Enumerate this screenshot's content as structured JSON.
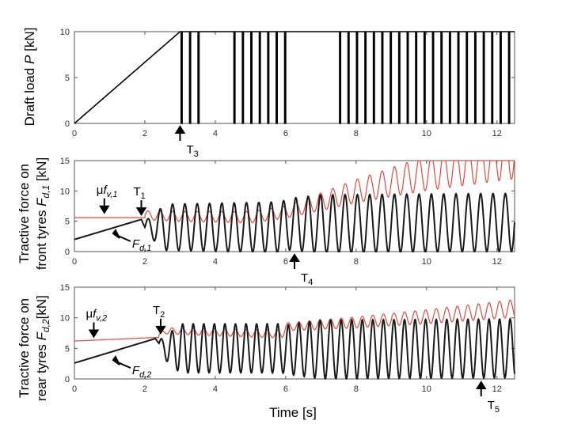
{
  "chart_data": [
    {
      "type": "line",
      "ylabel_text": "Draft load ",
      "ylabel_var": "P",
      "ylabel_unit": " [kN]",
      "xlim": [
        0,
        12.5
      ],
      "ylim": [
        0,
        10
      ],
      "xticks": [
        0,
        2,
        4,
        6,
        8,
        10,
        12
      ],
      "yticks": [
        0,
        5,
        10
      ],
      "ramp": {
        "x": [
          0,
          3
        ],
        "y": [
          0,
          10
        ]
      },
      "high_level": 10,
      "low_level": 0,
      "pulse_start": 3,
      "pulse_end": 12.5,
      "gaps": [
        [
          3.5,
          4.5
        ],
        [
          6.1,
          7.5
        ]
      ],
      "series": [
        {
          "color": "#000000"
        }
      ],
      "annotations": [
        {
          "label": "T",
          "sub": "3",
          "x": 3.0,
          "y": 0
        }
      ]
    },
    {
      "type": "line",
      "ylabel_line1": "Tractive force on",
      "ylabel_line2_text": "front tyres ",
      "ylabel_line2_var": "F",
      "ylabel_line2_sub": "d,1",
      "ylabel_line2_unit": " [kN]",
      "xlim": [
        0,
        12.5
      ],
      "ylim": [
        0,
        15
      ],
      "xticks": [
        0,
        2,
        4,
        6,
        8,
        10,
        12
      ],
      "yticks": [
        0,
        5,
        10,
        15
      ],
      "series": [
        {
          "name": "μf_v,1",
          "color": "#e8473c",
          "base": [
            [
              0,
              5.6
            ],
            [
              2,
              5.6
            ],
            [
              3,
              5.4
            ],
            [
              5,
              5.2
            ],
            [
              6,
              6.0
            ],
            [
              8,
              9.0
            ],
            [
              10,
              11.5
            ],
            [
              12.5,
              14.0
            ]
          ],
          "osc_from": 2.0,
          "amp": [
            [
              2,
              1.5
            ],
            [
              6,
              2.0
            ],
            [
              12.5,
              8.0
            ]
          ],
          "period": 0.35
        },
        {
          "name": "F_d,1",
          "color": "#1a1a1a",
          "base": [
            [
              0,
              2.0
            ],
            [
              1.9,
              5.3
            ],
            [
              2.0,
              4.0
            ],
            [
              5.9,
              4.0
            ],
            [
              6.0,
              4.5
            ],
            [
              12.5,
              4.8
            ]
          ],
          "osc_from": 2.0,
          "amp": [
            [
              2,
              1.0
            ],
            [
              2.6,
              3.8
            ],
            [
              6,
              4.2
            ],
            [
              7,
              4.8
            ],
            [
              12.5,
              4.8
            ]
          ],
          "period": 0.35
        }
      ],
      "annotations": [
        {
          "label": "μ",
          "var": "f",
          "sub": "v,1",
          "x": 0.85,
          "y": 5.9,
          "dir": "down"
        },
        {
          "label": "T",
          "sub": "1",
          "x": 1.9,
          "y": 5.6,
          "dir": "down"
        },
        {
          "label": "F",
          "sub": "d,1",
          "x": 1.1,
          "y": 3.0,
          "dir": "upleft"
        },
        {
          "label": "T",
          "sub": "4",
          "x": 6.25,
          "y": 0,
          "dir": "up"
        }
      ]
    },
    {
      "type": "line",
      "ylabel_line1": "Tractive force on",
      "ylabel_line2_text": "rear tyres ",
      "ylabel_line2_var": "F",
      "ylabel_line2_sub": "d,2",
      "ylabel_line2_unit": "[kN]",
      "xlabel": "Time [s]",
      "xlim": [
        0,
        12.5
      ],
      "ylim": [
        0,
        15
      ],
      "xticks": [
        0,
        2,
        4,
        6,
        8,
        10,
        12
      ],
      "yticks": [
        0,
        5,
        10,
        15
      ],
      "series": [
        {
          "name": "μf_v,2",
          "color": "#e8473c",
          "base": [
            [
              0,
              6.2
            ],
            [
              2.4,
              6.8
            ],
            [
              2.6,
              7.6
            ],
            [
              5.9,
              7.0
            ],
            [
              6.0,
              8.2
            ],
            [
              8,
              8.8
            ],
            [
              10,
              9.6
            ],
            [
              12.5,
              10.8
            ]
          ],
          "osc_from": 2.4,
          "amp": [
            [
              2.4,
              1.0
            ],
            [
              6,
              1.3
            ],
            [
              12.5,
              2.9
            ]
          ],
          "period": 0.3
        },
        {
          "name": "F_d,2",
          "color": "#1a1a1a",
          "base": [
            [
              0,
              2.6
            ],
            [
              2.3,
              6.6
            ],
            [
              2.5,
              5.0
            ],
            [
              5.9,
              5.0
            ],
            [
              6.0,
              4.8
            ],
            [
              12.5,
              5.0
            ]
          ],
          "osc_from": 2.4,
          "amp": [
            [
              2.4,
              1.0
            ],
            [
              3.0,
              4.0
            ],
            [
              6,
              4.0
            ],
            [
              7,
              4.8
            ],
            [
              12.5,
              4.8
            ]
          ],
          "period": 0.3
        }
      ],
      "annotations": [
        {
          "label": "μ",
          "var": "f",
          "sub": "v,2",
          "x": 0.55,
          "y": 6.4,
          "dir": "down"
        },
        {
          "label": "T",
          "sub": "2",
          "x": 2.45,
          "y": 7.0,
          "dir": "down"
        },
        {
          "label": "F",
          "sub": "d,2",
          "x": 1.1,
          "y": 3.1,
          "dir": "upleft"
        },
        {
          "label": "T",
          "sub": "5",
          "x": 11.55,
          "y": 0,
          "dir": "up"
        }
      ]
    }
  ]
}
